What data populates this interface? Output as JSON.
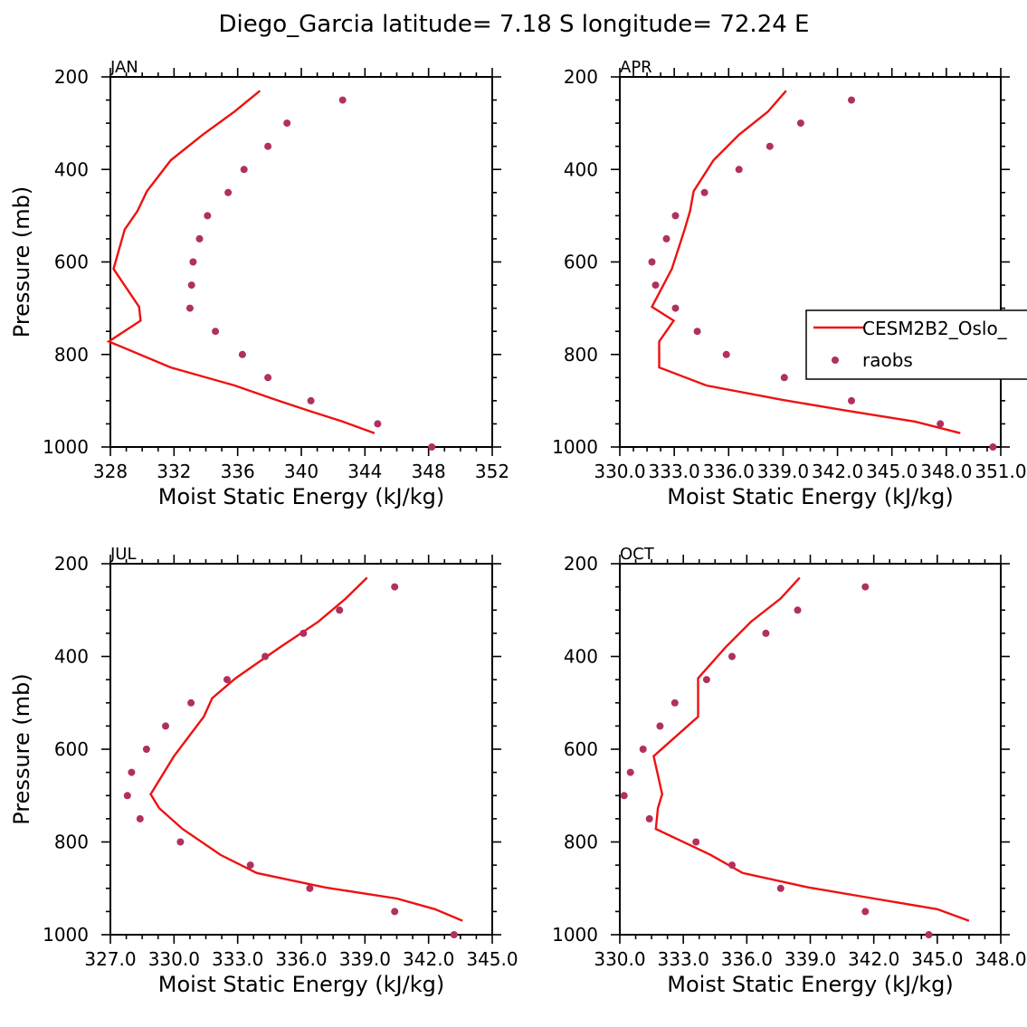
{
  "title": "Diego_Garcia  latitude= 7.18 S longitude= 72.24 E",
  "legend": {
    "model_label": "CESM2B2_Oslo_",
    "obs_label": "raobs",
    "model_color": "#ee1111",
    "obs_color": "#b03060"
  },
  "chart_data": [
    {
      "type": "line",
      "panel": "JAN",
      "xlabel": "Moist Static Energy (kJ/kg)",
      "ylabel": "Pressure (mb)",
      "xlim": [
        328,
        352
      ],
      "ylim": [
        1000,
        200
      ],
      "xticks": [
        328,
        332,
        336,
        340,
        344,
        348,
        352
      ],
      "xtick_labels": [
        "328",
        "332",
        "336",
        "340",
        "344",
        "348",
        "352"
      ],
      "yticks": [
        200,
        400,
        600,
        800,
        1000
      ],
      "ytick_labels": [
        "200",
        "400",
        "600",
        "800",
        "1000"
      ],
      "series": [
        {
          "name": "CESM2B2_Oslo_",
          "kind": "line",
          "x": [
            337.4,
            335.8,
            333.8,
            331.8,
            330.3,
            329.7,
            328.9,
            328.2,
            329.8,
            329.9,
            327.9,
            331.8,
            335.8,
            338.4,
            340.5,
            342.6,
            344.6
          ],
          "y": [
            230,
            275,
            325,
            380,
            447,
            490,
            530,
            615,
            697,
            727,
            772,
            828,
            867,
            898,
            922,
            945,
            970
          ]
        },
        {
          "name": "raobs",
          "kind": "scatter",
          "x": [
            342.6,
            339.1,
            337.9,
            336.4,
            335.4,
            334.1,
            333.6,
            333.2,
            333.1,
            333.0,
            334.6,
            336.3,
            337.9,
            340.6,
            344.8,
            348.2
          ],
          "y": [
            250,
            300,
            350,
            400,
            450,
            500,
            550,
            600,
            650,
            700,
            750,
            800,
            850,
            900,
            950,
            1000
          ]
        }
      ]
    },
    {
      "type": "line",
      "panel": "APR",
      "xlabel": "Moist Static Energy (kJ/kg)",
      "ylabel": "",
      "xlim": [
        330.03,
        351.03
      ],
      "ylim": [
        1000,
        200
      ],
      "xticks": [
        330.03,
        333.03,
        336.03,
        339.03,
        342.03,
        345.03,
        348.03,
        351.03
      ],
      "xtick_labels": [
        "330.0",
        "333.0",
        "336.0",
        "339.0",
        "342.0",
        "345.0",
        "348.0",
        "351.0"
      ],
      "yticks": [
        200,
        400,
        600,
        800,
        1000
      ],
      "ytick_labels": [
        "200",
        "400",
        "600",
        "800",
        "1000"
      ],
      "series": [
        {
          "name": "CESM2B2_Oslo_",
          "kind": "line",
          "x": [
            339.2,
            338.2,
            336.6,
            335.2,
            334.1,
            333.9,
            333.6,
            332.9,
            331.8,
            333.0,
            332.2,
            332.2,
            334.8,
            339.0,
            342.6,
            346.3,
            348.8
          ],
          "y": [
            230,
            275,
            325,
            380,
            447,
            490,
            530,
            615,
            697,
            727,
            772,
            828,
            867,
            898,
            922,
            945,
            970
          ]
        },
        {
          "name": "raobs",
          "kind": "scatter",
          "x": [
            342.8,
            340.0,
            338.3,
            336.6,
            334.7,
            333.1,
            332.6,
            331.8,
            332.0,
            333.1,
            334.3,
            335.9,
            339.1,
            342.8,
            347.7,
            350.6
          ],
          "y": [
            250,
            300,
            350,
            400,
            450,
            500,
            550,
            600,
            650,
            700,
            750,
            800,
            850,
            900,
            950,
            1000
          ]
        }
      ]
    },
    {
      "type": "line",
      "panel": "JUL",
      "xlabel": "Moist Static Energy (kJ/kg)",
      "ylabel": "Pressure (mb)",
      "xlim": [
        327,
        345
      ],
      "ylim": [
        1000,
        200
      ],
      "xticks": [
        327,
        330,
        333,
        336,
        339,
        342,
        345
      ],
      "xtick_labels": [
        "327.0",
        "330.0",
        "333.0",
        "336.0",
        "339.0",
        "342.0",
        "345.0"
      ],
      "yticks": [
        200,
        400,
        600,
        800,
        1000
      ],
      "ytick_labels": [
        "200",
        "400",
        "600",
        "800",
        "1000"
      ],
      "series": [
        {
          "name": "CESM2B2_Oslo_",
          "kind": "line",
          "x": [
            339.1,
            338.1,
            336.8,
            335.0,
            332.9,
            331.8,
            331.4,
            330.0,
            328.9,
            329.3,
            330.4,
            332.2,
            333.9,
            337.1,
            340.5,
            342.3,
            343.6
          ],
          "y": [
            230,
            275,
            325,
            380,
            447,
            490,
            530,
            615,
            697,
            727,
            772,
            828,
            867,
            898,
            922,
            945,
            970
          ]
        },
        {
          "name": "raobs",
          "kind": "scatter",
          "x": [
            340.4,
            337.8,
            336.1,
            334.3,
            332.5,
            330.8,
            329.6,
            328.7,
            328.0,
            327.8,
            328.4,
            330.3,
            333.6,
            336.4,
            340.4,
            343.2
          ],
          "y": [
            250,
            300,
            350,
            400,
            450,
            500,
            550,
            600,
            650,
            700,
            750,
            800,
            850,
            900,
            950,
            1000
          ]
        }
      ]
    },
    {
      "type": "line",
      "panel": "OCT",
      "xlabel": "Moist Static Energy (kJ/kg)",
      "ylabel": "",
      "xlim": [
        330,
        348
      ],
      "ylim": [
        1000,
        200
      ],
      "xticks": [
        330,
        333,
        336,
        339,
        342,
        345,
        348
      ],
      "xtick_labels": [
        "330.0",
        "333.0",
        "336.0",
        "339.0",
        "342.0",
        "345.0",
        "348.0"
      ],
      "yticks": [
        200,
        400,
        600,
        800,
        1000
      ],
      "ytick_labels": [
        "200",
        "400",
        "600",
        "800",
        "1000"
      ],
      "series": [
        {
          "name": "CESM2B2_Oslo_",
          "kind": "line",
          "x": [
            338.5,
            337.6,
            336.2,
            335.0,
            333.7,
            333.7,
            333.7,
            331.6,
            332.0,
            331.8,
            331.7,
            334.3,
            335.8,
            338.9,
            342.0,
            345.0,
            346.5
          ],
          "y": [
            230,
            275,
            325,
            380,
            447,
            490,
            530,
            615,
            697,
            727,
            772,
            828,
            867,
            898,
            922,
            945,
            970
          ]
        },
        {
          "name": "raobs",
          "kind": "scatter",
          "x": [
            341.6,
            338.4,
            336.9,
            335.3,
            334.1,
            332.6,
            331.9,
            331.1,
            330.5,
            330.2,
            331.4,
            333.6,
            335.3,
            337.6,
            341.6,
            344.6
          ],
          "y": [
            250,
            300,
            350,
            400,
            450,
            500,
            550,
            600,
            650,
            700,
            750,
            800,
            850,
            900,
            950,
            1000
          ]
        }
      ]
    }
  ]
}
